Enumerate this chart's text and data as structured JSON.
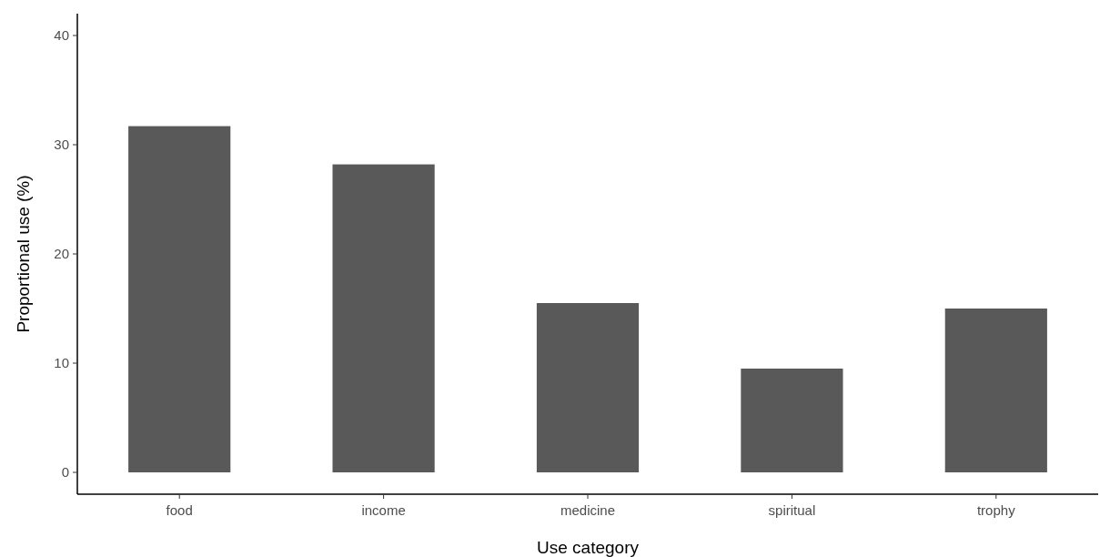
{
  "chart_data": {
    "type": "bar",
    "xlabel": "Use category",
    "ylabel": "Proportional use (%)",
    "categories": [
      "food",
      "income",
      "medicine",
      "spiritual",
      "trophy"
    ],
    "values": [
      31.7,
      28.2,
      15.5,
      9.5,
      15.0
    ],
    "color": "#595959",
    "ylim": [
      -2,
      42
    ],
    "yticks": [
      0,
      10,
      20,
      30,
      40
    ],
    "grid": false
  }
}
